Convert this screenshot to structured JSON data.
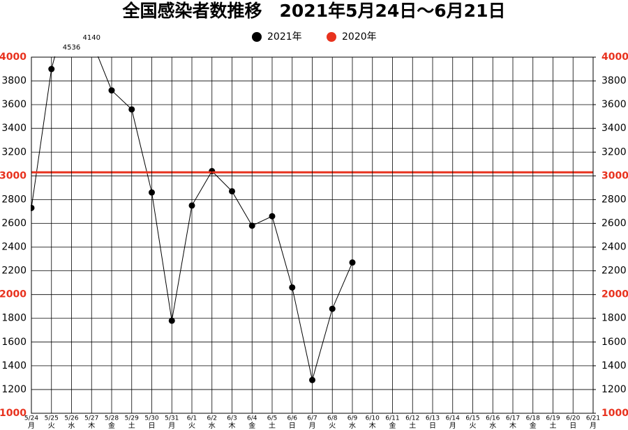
{
  "chart_data": {
    "type": "line",
    "title": "全国感染者数推移　2021年5月24日～6月21日",
    "categories": [
      "5/24",
      "5/25",
      "5/26",
      "5/27",
      "5/28",
      "5/29",
      "5/30",
      "5/31",
      "6/1",
      "6/2",
      "6/3",
      "6/4",
      "6/5",
      "6/6",
      "6/7",
      "6/8",
      "6/9",
      "6/10",
      "6/11",
      "6/12",
      "6/13",
      "6/14",
      "6/15",
      "6/16",
      "6/17",
      "6/18",
      "6/19",
      "6/20",
      "6/21"
    ],
    "weekdays": [
      "月",
      "火",
      "水",
      "木",
      "金",
      "土",
      "日",
      "月",
      "火",
      "水",
      "木",
      "金",
      "土",
      "日",
      "月",
      "火",
      "水",
      "木",
      "金",
      "土",
      "日",
      "月",
      "火",
      "水",
      "木",
      "金",
      "土",
      "日",
      "月"
    ],
    "series": [
      {
        "name": "2021年",
        "color": "#000000",
        "values": [
          2730,
          3900,
          4536,
          4140,
          3720,
          3560,
          2860,
          1780,
          2750,
          3040,
          2870,
          2580,
          2660,
          2060,
          1280,
          1880,
          2270,
          null,
          null,
          null,
          null,
          null,
          null,
          null,
          null,
          null,
          null,
          null,
          null
        ]
      },
      {
        "name": "2020年",
        "color": "#e8321e",
        "values": [
          3030,
          3030,
          3030,
          3030,
          3030,
          3030,
          3030,
          3030,
          3030,
          3030,
          3030,
          3030,
          3030,
          3030,
          3030,
          3030,
          3030,
          3030,
          3030,
          3030,
          3030,
          3030,
          3030,
          3030,
          3030,
          3030,
          3030,
          3030,
          3030
        ]
      }
    ],
    "ylim": [
      1000,
      4000
    ],
    "yticks": [
      1000,
      1200,
      1400,
      1600,
      1800,
      2000,
      2200,
      2400,
      2600,
      2800,
      3000,
      3200,
      3400,
      3600,
      3800,
      4000
    ],
    "y2lim": [
      1000,
      4000
    ],
    "y2ticks": [
      1000,
      1200,
      1400,
      1600,
      1800,
      2000,
      2200,
      2400,
      2600,
      2800,
      3000,
      3200,
      3400,
      3600,
      3800,
      4000
    ],
    "highlight_tick_color": "#e8321e",
    "grid": true
  }
}
